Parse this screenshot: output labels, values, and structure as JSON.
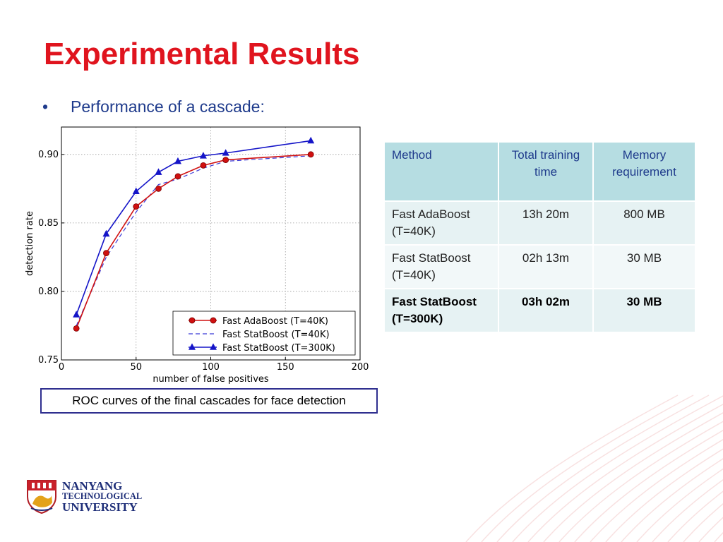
{
  "slide": {
    "title": "Experimental Results",
    "bullet": "Performance of a cascade:",
    "caption": "ROC curves of the final cascades for face detection",
    "accent_color": "#e0141e",
    "text_color": "#1f3b8c"
  },
  "table": {
    "headers": [
      "Method",
      "Total training time",
      "Memory requirement"
    ],
    "rows": [
      {
        "method": "Fast AdaBoost (T=40K)",
        "time": "13h 20m",
        "memory": "800 MB",
        "bold": false
      },
      {
        "method": "Fast StatBoost (T=40K)",
        "time": "02h 13m",
        "memory": "30 MB",
        "bold": false
      },
      {
        "method": "Fast StatBoost (T=300K)",
        "time": "03h 02m",
        "memory": "30 MB",
        "bold": true
      }
    ]
  },
  "logo": {
    "line1": "NANYANG",
    "line2": "TECHNOLOGICAL",
    "line3": "UNIVERSITY"
  },
  "chart_data": {
    "type": "line",
    "title": "",
    "xlabel": "number of false positives",
    "ylabel": "detection rate",
    "xlim": [
      0,
      200
    ],
    "ylim": [
      0.75,
      0.92
    ],
    "xticks": [
      0,
      50,
      100,
      150,
      200
    ],
    "yticks": [
      0.75,
      0.8,
      0.85,
      0.9
    ],
    "grid": true,
    "legend_position": "lower-right",
    "series": [
      {
        "name": "Fast AdaBoost (T=40K)",
        "color": "#d01010",
        "style": "solid",
        "marker": "circle",
        "x": [
          10,
          30,
          50,
          65,
          78,
          95,
          110,
          167
        ],
        "y": [
          0.773,
          0.828,
          0.862,
          0.875,
          0.884,
          0.892,
          0.896,
          0.9
        ]
      },
      {
        "name": "Fast StatBoost (T=40K)",
        "color": "#3a3ad8",
        "style": "dashed",
        "marker": "none",
        "x": [
          10,
          30,
          50,
          65,
          78,
          95,
          110,
          167
        ],
        "y": [
          0.775,
          0.825,
          0.858,
          0.878,
          0.882,
          0.89,
          0.895,
          0.899
        ]
      },
      {
        "name": "Fast StatBoost (T=300K)",
        "color": "#1515c8",
        "style": "solid",
        "marker": "triangle",
        "x": [
          10,
          30,
          50,
          65,
          78,
          95,
          110,
          167
        ],
        "y": [
          0.783,
          0.842,
          0.873,
          0.887,
          0.895,
          0.899,
          0.901,
          0.91
        ]
      }
    ]
  }
}
